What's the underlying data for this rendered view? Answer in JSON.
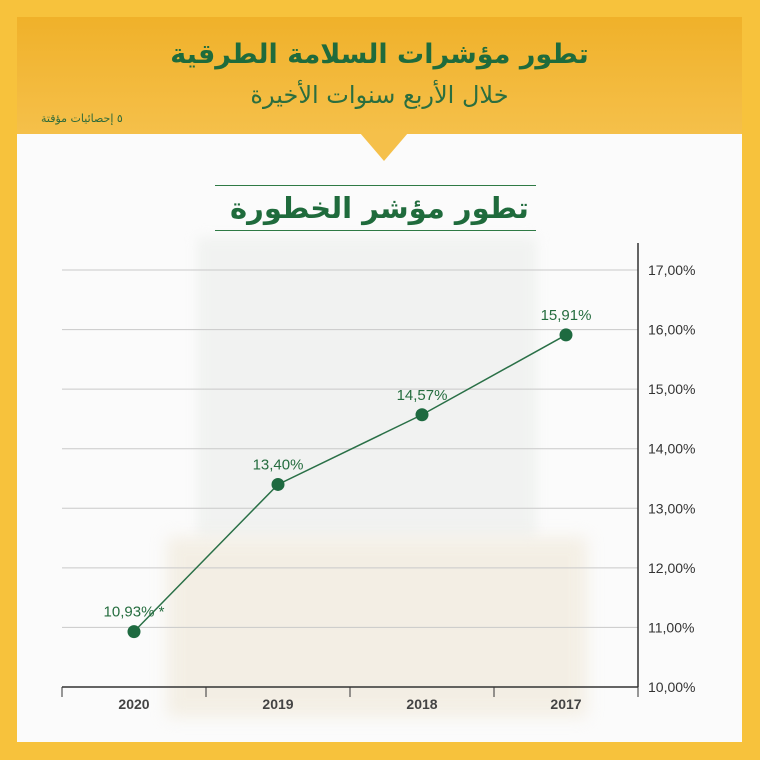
{
  "header": {
    "title": "تطور  مؤشرات السلامة الطرقية",
    "subtitle": "خلال الأربع سنوات الأخيرة",
    "note": "٥ إحصائيات مؤقتة"
  },
  "colors": {
    "frame": "#f7c23c",
    "header": "#f0b12a",
    "green": "#1f6b3c",
    "line": "#2a7047"
  },
  "chart_data": {
    "type": "line",
    "title": "تطور مؤشر الخطورة",
    "x": [
      "2020",
      "2019",
      "2018",
      "2017"
    ],
    "values": [
      10.93,
      13.4,
      14.57,
      15.91
    ],
    "labels": [
      "10,93% *",
      "13,40%",
      "14,57%",
      "15,91%"
    ],
    "ylim": [
      10,
      17
    ],
    "yticks": [
      "10,00%",
      "11,00%",
      "12,00%",
      "13,00%",
      "14,00%",
      "15,00%",
      "16,00%",
      "17,00%"
    ],
    "ytick_values": [
      10,
      11,
      12,
      13,
      14,
      15,
      16,
      17
    ],
    "grid": true,
    "y_axis_side": "right"
  }
}
